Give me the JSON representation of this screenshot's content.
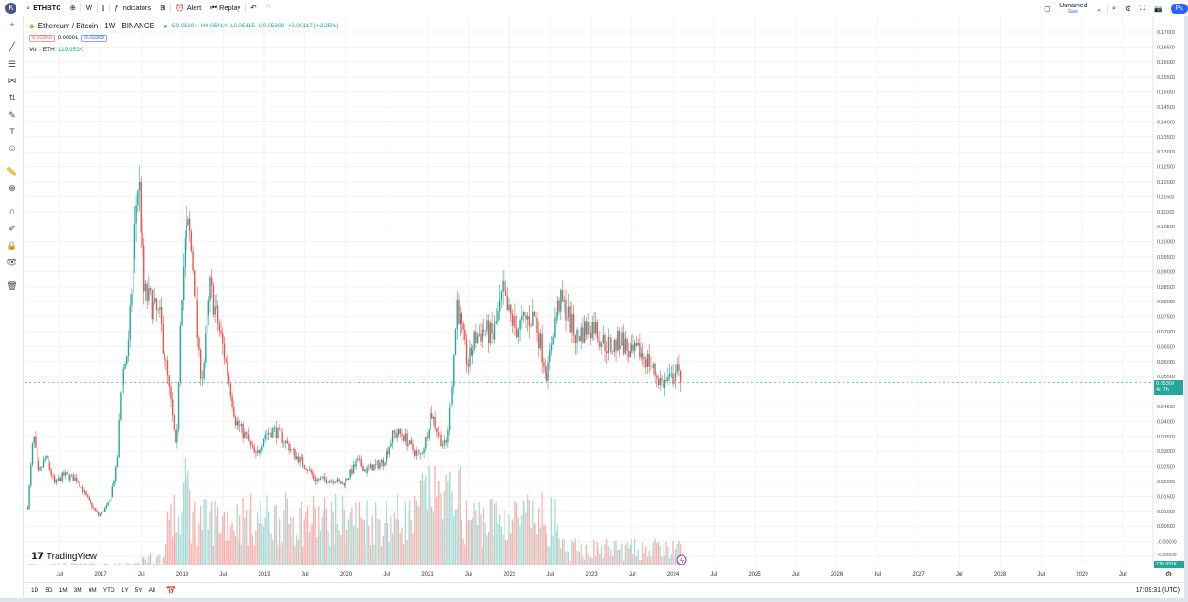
{
  "topbar": {
    "avatar": "K",
    "symbol": "ETHBTC",
    "interval": "W",
    "indicators": "Indicators",
    "alert": "Alert",
    "replay": "Replay",
    "layout_name": "Unnamed",
    "save": "Save",
    "publish": "Pu"
  },
  "legend": {
    "title": "Ethereum / Bitcoin · 1W · BINANCE",
    "o": "O0.05191",
    "h": "H0.05414",
    "l": "L0.05115",
    "c": "C0.05309",
    "chg": "+0.00117 (+2.25%)",
    "bid": "0.05308",
    "spread": "0.00001",
    "ask": "0.05309",
    "vol_label": "Vol · ETH",
    "vol_value": "119.953K"
  },
  "price_badge": {
    "price": "0.05309",
    "countdown": "4d 7h"
  },
  "volume_badge": "119.953K",
  "logo": "TradingView",
  "bottom": {
    "ranges": [
      "1D",
      "5D",
      "1M",
      "3M",
      "6M",
      "YTD",
      "1Y",
      "5Y",
      "All"
    ],
    "clock": "17:09:31 (UTC)"
  },
  "colors": {
    "up": "#26a69a",
    "down": "#ef5350",
    "accent": "#2962ff"
  },
  "chart_data": {
    "type": "candlestick",
    "symbol": "ETHBTC",
    "interval": "1W",
    "price_ticks": [
      "0.17000",
      "0.16500",
      "0.16000",
      "0.15500",
      "0.15000",
      "0.14500",
      "0.14000",
      "0.13500",
      "0.13000",
      "0.12500",
      "0.12000",
      "0.11500",
      "0.11000",
      "0.10500",
      "0.10000",
      "0.09500",
      "0.09000",
      "0.08500",
      "0.08000",
      "0.07500",
      "0.07000",
      "0.06500",
      "0.06000",
      "0.05500",
      "0.04500",
      "0.04000",
      "0.03500",
      "0.03000",
      "0.02500",
      "0.02000",
      "0.01500",
      "0.01000",
      "0.00500",
      "-0.00000",
      "-0.00500"
    ],
    "ylim": [
      -0.005,
      0.17
    ],
    "time_ticks": [
      "Jul",
      "2017",
      "Jul",
      "2018",
      "Jul",
      "2019",
      "Jul",
      "2020",
      "Jul",
      "2021",
      "Jul",
      "2022",
      "Jul",
      "2023",
      "Jul",
      "2024",
      "Jul",
      "2025",
      "Jul",
      "2026",
      "Jul",
      "2027",
      "Jul",
      "2028",
      "Jul",
      "2029",
      "Jul"
    ],
    "xlim": [
      2016.03,
      2029.85
    ],
    "close_path": [
      [
        2016.11,
        0.0114
      ],
      [
        2016.18,
        0.0358
      ],
      [
        2016.24,
        0.0221
      ],
      [
        2016.33,
        0.0282
      ],
      [
        2016.44,
        0.019
      ],
      [
        2016.55,
        0.0221
      ],
      [
        2016.72,
        0.0206
      ],
      [
        2016.83,
        0.0145
      ],
      [
        2016.98,
        0.0084
      ],
      [
        2017.11,
        0.013
      ],
      [
        2017.2,
        0.0251
      ],
      [
        2017.25,
        0.0526
      ],
      [
        2017.34,
        0.0648
      ],
      [
        2017.39,
        0.0892
      ],
      [
        2017.45,
        0.1197
      ],
      [
        2017.48,
        0.1166
      ],
      [
        2017.53,
        0.0831
      ],
      [
        2017.61,
        0.08
      ],
      [
        2017.73,
        0.0739
      ],
      [
        2017.8,
        0.0587
      ],
      [
        2017.87,
        0.0434
      ],
      [
        2017.93,
        0.0282
      ],
      [
        2017.98,
        0.08
      ],
      [
        2018.04,
        0.1014
      ],
      [
        2018.08,
        0.1044
      ],
      [
        2018.14,
        0.0892
      ],
      [
        2018.21,
        0.0587
      ],
      [
        2018.25,
        0.0556
      ],
      [
        2018.34,
        0.0846
      ],
      [
        2018.43,
        0.0739
      ],
      [
        2018.54,
        0.0587
      ],
      [
        2018.65,
        0.0404
      ],
      [
        2018.79,
        0.0343
      ],
      [
        2018.9,
        0.0282
      ],
      [
        2019.01,
        0.0358
      ],
      [
        2019.12,
        0.0373
      ],
      [
        2019.23,
        0.0343
      ],
      [
        2019.35,
        0.0297
      ],
      [
        2019.51,
        0.0251
      ],
      [
        2019.63,
        0.0206
      ],
      [
        2019.74,
        0.0206
      ],
      [
        2019.85,
        0.0206
      ],
      [
        2019.96,
        0.019
      ],
      [
        2020.07,
        0.0236
      ],
      [
        2020.15,
        0.0267
      ],
      [
        2020.24,
        0.0236
      ],
      [
        2020.35,
        0.0251
      ],
      [
        2020.46,
        0.0267
      ],
      [
        2020.58,
        0.0358
      ],
      [
        2020.69,
        0.0358
      ],
      [
        2020.8,
        0.0312
      ],
      [
        2020.91,
        0.0282
      ],
      [
        2020.98,
        0.0343
      ],
      [
        2021.04,
        0.0434
      ],
      [
        2021.13,
        0.0358
      ],
      [
        2021.22,
        0.0312
      ],
      [
        2021.3,
        0.0526
      ],
      [
        2021.36,
        0.08
      ],
      [
        2021.41,
        0.0709
      ],
      [
        2021.49,
        0.0587
      ],
      [
        2021.58,
        0.0678
      ],
      [
        2021.69,
        0.0709
      ],
      [
        2021.8,
        0.0678
      ],
      [
        2021.92,
        0.0831
      ],
      [
        2021.97,
        0.077
      ],
      [
        2022.08,
        0.0709
      ],
      [
        2022.2,
        0.0739
      ],
      [
        2022.31,
        0.0754
      ],
      [
        2022.42,
        0.0602
      ],
      [
        2022.47,
        0.0556
      ],
      [
        2022.53,
        0.0709
      ],
      [
        2022.61,
        0.08
      ],
      [
        2022.7,
        0.077
      ],
      [
        2022.81,
        0.0678
      ],
      [
        2022.92,
        0.0709
      ],
      [
        2023.03,
        0.0724
      ],
      [
        2023.15,
        0.0663
      ],
      [
        2023.26,
        0.0648
      ],
      [
        2023.37,
        0.0678
      ],
      [
        2023.48,
        0.0617
      ],
      [
        2023.59,
        0.0633
      ],
      [
        2023.7,
        0.0602
      ],
      [
        2023.79,
        0.0556
      ],
      [
        2023.87,
        0.0526
      ],
      [
        2023.98,
        0.0541
      ],
      [
        2024.04,
        0.0572
      ],
      [
        2024.09,
        0.0531
      ]
    ],
    "last_price": 0.05309
  }
}
